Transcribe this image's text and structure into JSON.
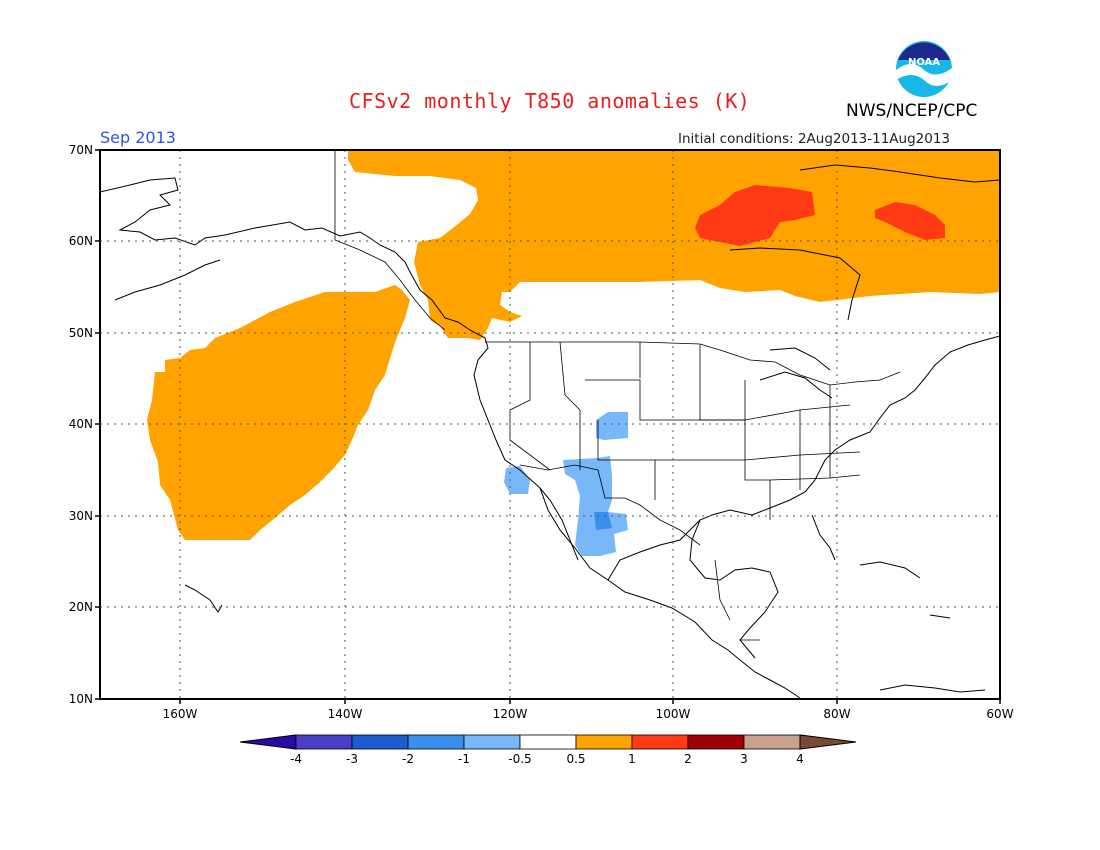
{
  "header": {
    "title": "CFSv2 monthly T850 anomalies (K)",
    "agency": "NWS/NCEP/CPC",
    "month": "Sep 2013",
    "initial_conditions": "Initial conditions: 2Aug2013-11Aug2013",
    "logo_text": "NOAA"
  },
  "map": {
    "lon_range": [
      -172,
      -60
    ],
    "lat_range": [
      10,
      70
    ],
    "lat_labels": [
      "70N",
      "60N",
      "50N",
      "40N",
      "30N",
      "20N",
      "10N"
    ],
    "lon_labels": [
      "160W",
      "140W",
      "120W",
      "100W",
      "80W",
      "60W"
    ],
    "grid": true
  },
  "colorbar": {
    "labels": [
      "-4",
      "-3",
      "-2",
      "-1",
      "-0.5",
      "0.5",
      "1",
      "2",
      "3",
      "4"
    ],
    "colors": [
      "#2a0aa0",
      "#4a3ec8",
      "#1f5bd0",
      "#3a8ef0",
      "#78b8f8",
      "#ffffff",
      "#ffa300",
      "#ff3a14",
      "#a00000",
      "#c9a089",
      "#7a4a36"
    ]
  },
  "anomaly_colors": {
    "warm_1": "#ffa300",
    "warm_2": "#ff3a14",
    "cool_1": "#78b8f8",
    "cool_2": "#3a8ef0"
  }
}
